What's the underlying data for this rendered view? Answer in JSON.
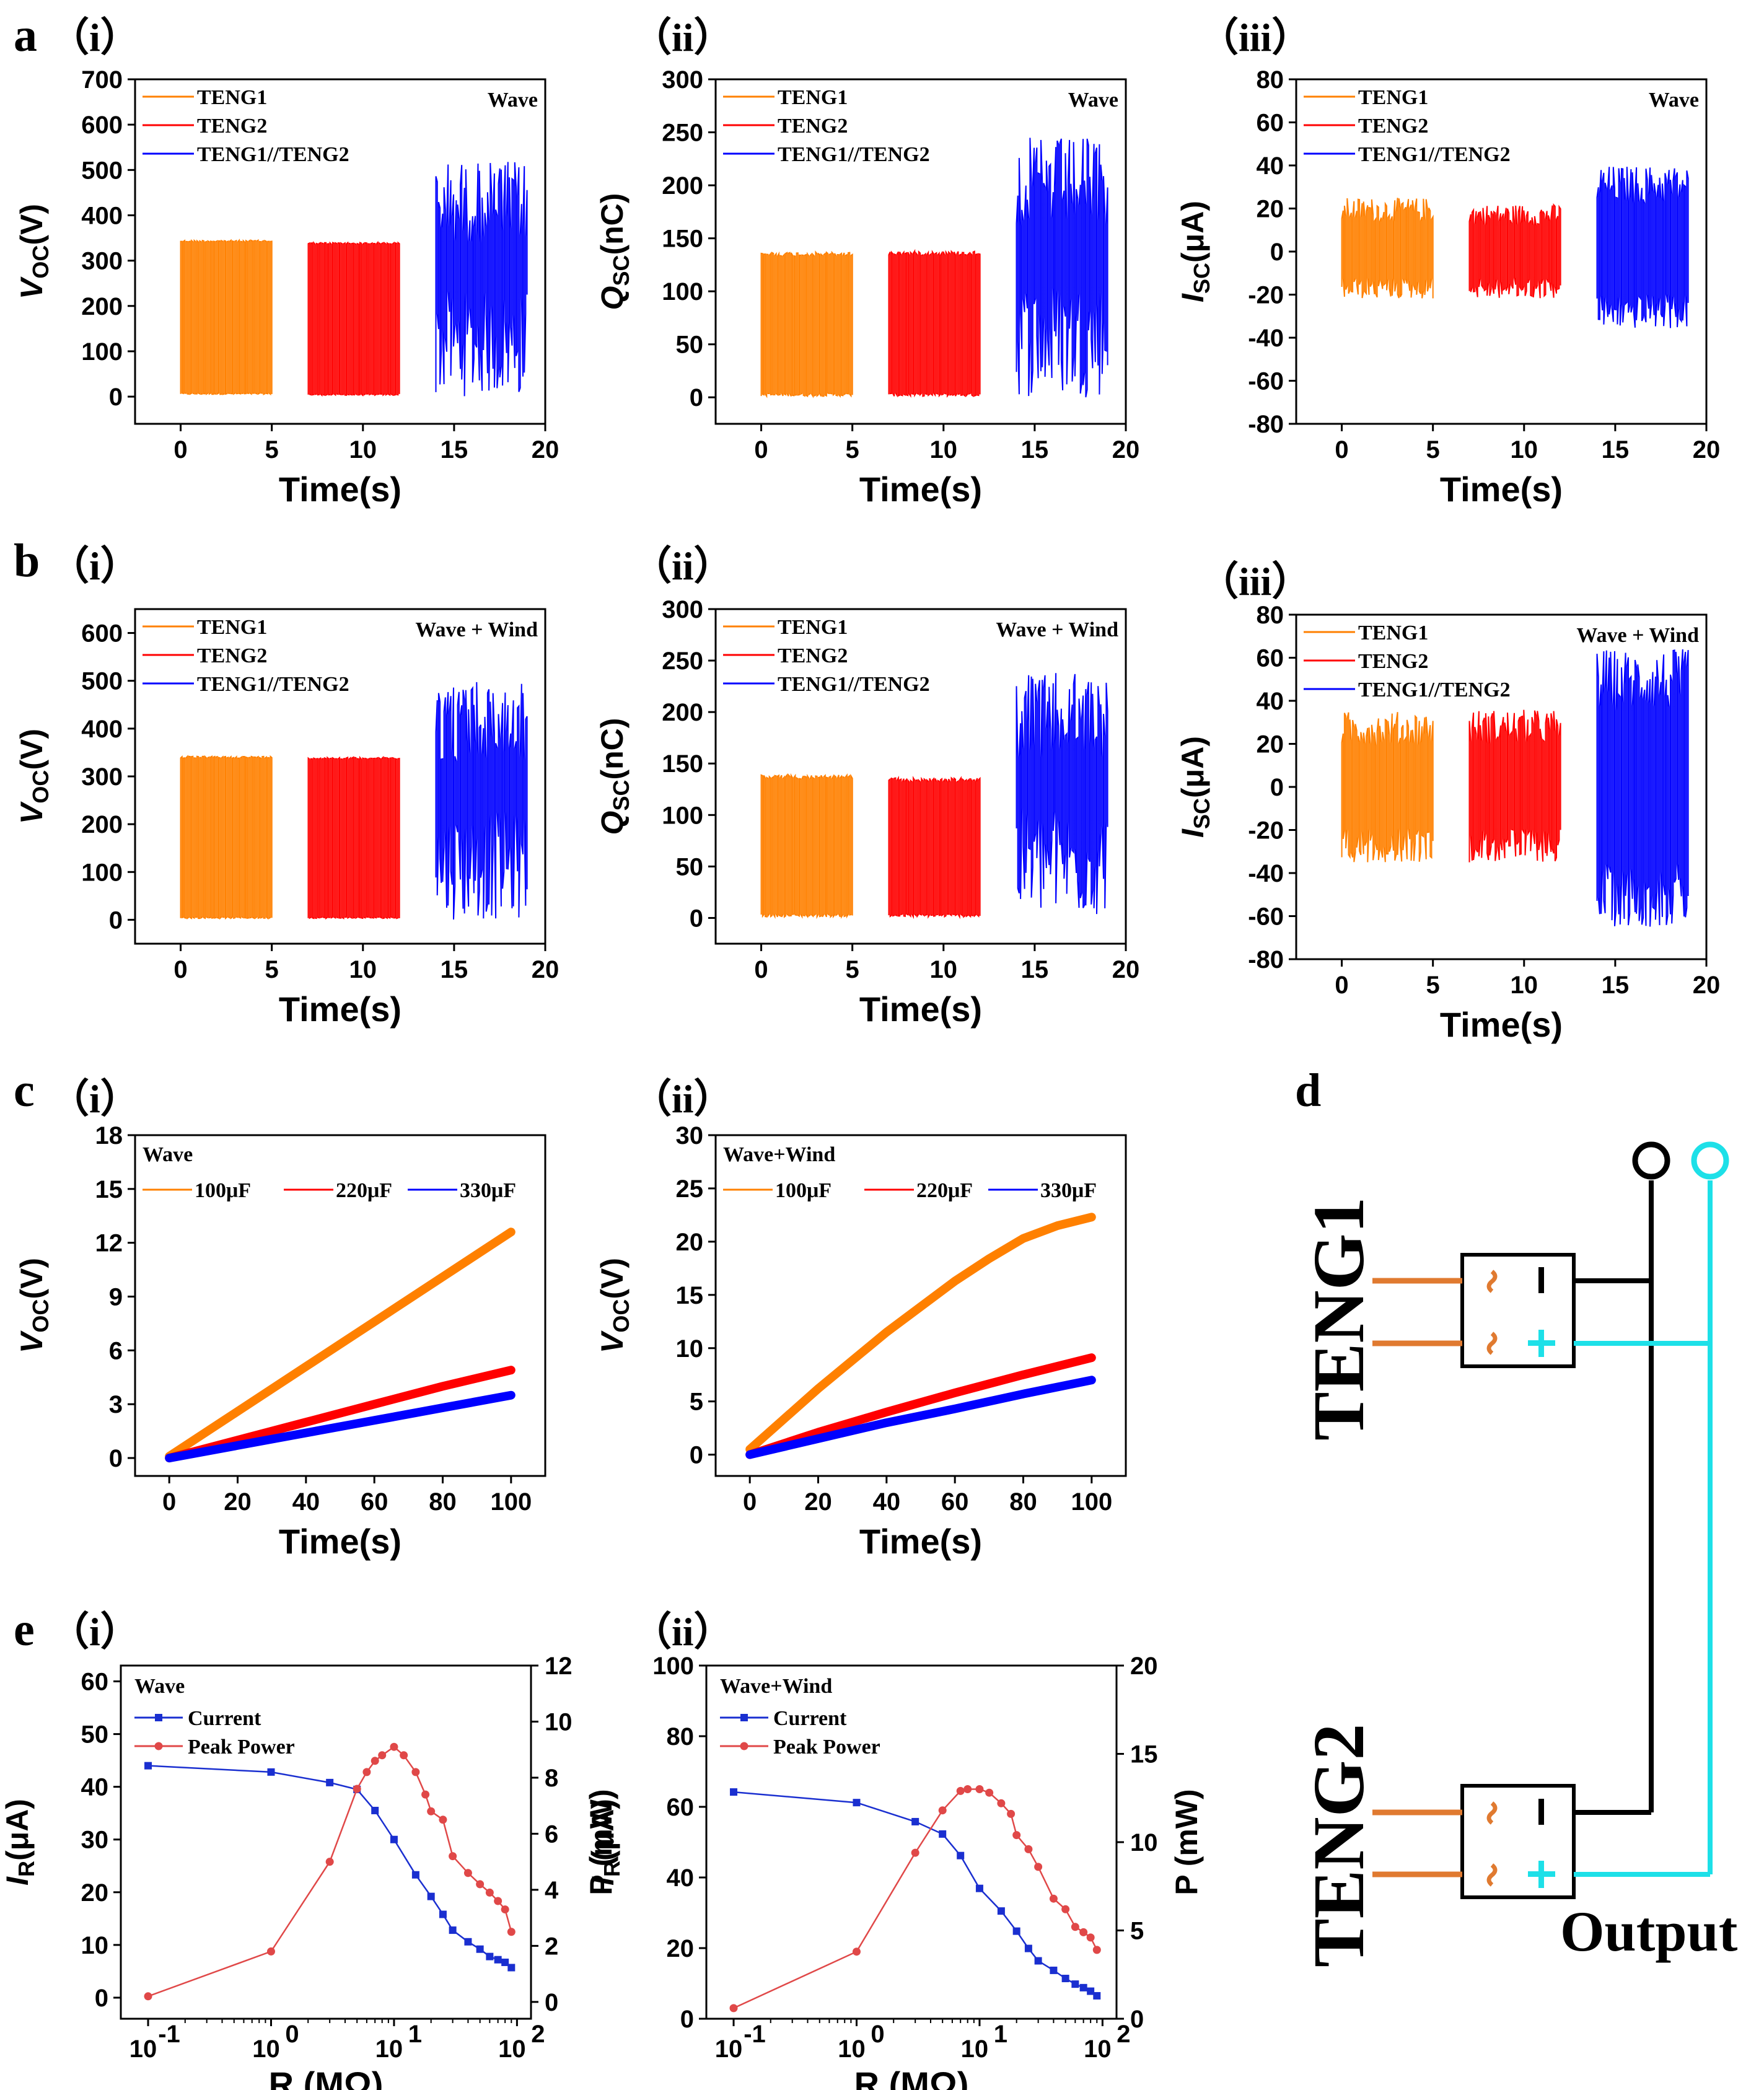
{
  "colors": {
    "orange": "#ff8000",
    "red": "#ff0000",
    "blue": "#0000ff",
    "power": "#e04848",
    "current": "#1a2fd0",
    "cyan": "#1de0e8",
    "teng_wire": "#e07a30",
    "black": "#000000"
  },
  "labels": {
    "a": "a",
    "b": "b",
    "c": "c",
    "d": "d",
    "e": "e",
    "i": "（i）",
    "ii": "（ii）",
    "iii": "（iii）"
  },
  "chart_data": [
    {
      "id": "a-i",
      "type": "line",
      "condition": "Wave",
      "xlabel": "Time(s)",
      "ylabel": "V_OC(V)",
      "ylabel_main": "V",
      "ylabel_sub": "OC",
      "ylabel_unit": "(V)",
      "xlim": [
        -2.5,
        20
      ],
      "ylim": [
        -60,
        700
      ],
      "xticks": [
        0,
        5,
        10,
        15,
        20
      ],
      "yticks": [
        0,
        100,
        200,
        300,
        400,
        500,
        600,
        700
      ],
      "series": [
        {
          "name": "TENG1",
          "color": "#ff8000",
          "t0": 0,
          "t1": 5,
          "low": 5,
          "high": 345,
          "kind": "steady"
        },
        {
          "name": "TENG2",
          "color": "#ff0000",
          "t0": 7,
          "t1": 12,
          "low": 3,
          "high": 340,
          "kind": "steady"
        },
        {
          "name": "TENG1//TENG2",
          "color": "#0000ff",
          "t0": 14,
          "t1": 19,
          "low": 0,
          "high": 520,
          "kind": "noisy"
        }
      ]
    },
    {
      "id": "a-ii",
      "type": "line",
      "condition": "Wave",
      "xlabel": "Time(s)",
      "ylabel": "Q_SC(nC)",
      "ylabel_main": "Q",
      "ylabel_sub": "SC",
      "ylabel_unit": "(nC)",
      "xlim": [
        -2.5,
        20
      ],
      "ylim": [
        -25,
        300
      ],
      "xticks": [
        0,
        5,
        10,
        15,
        20
      ],
      "yticks": [
        0,
        50,
        100,
        150,
        200,
        250,
        300
      ],
      "series": [
        {
          "name": "TENG1",
          "color": "#ff8000",
          "t0": 0,
          "t1": 5,
          "low": 1,
          "high": 137,
          "kind": "steady"
        },
        {
          "name": "TENG2",
          "color": "#ff0000",
          "t0": 7,
          "t1": 12,
          "low": 1,
          "high": 138,
          "kind": "steady"
        },
        {
          "name": "TENG1//TENG2",
          "color": "#0000ff",
          "t0": 14,
          "t1": 19,
          "low": 0,
          "high": 245,
          "kind": "noisy"
        }
      ]
    },
    {
      "id": "a-iii",
      "type": "line",
      "condition": "Wave",
      "xlabel": "Time(s)",
      "ylabel": "I_SC(μA)",
      "ylabel_main": "I",
      "ylabel_sub": "SC",
      "ylabel_unit": "(μA)",
      "xlim": [
        -2.5,
        20
      ],
      "ylim": [
        -80,
        80
      ],
      "xticks": [
        0,
        5,
        10,
        15,
        20
      ],
      "yticks": [
        -80,
        -60,
        -40,
        -20,
        0,
        20,
        40,
        60,
        80
      ],
      "series": [
        {
          "name": "TENG1",
          "color": "#ff8000",
          "t0": 0,
          "t1": 5,
          "low": -22,
          "high": 25,
          "kind": "ac"
        },
        {
          "name": "TENG2",
          "color": "#ff0000",
          "t0": 7,
          "t1": 12,
          "low": -22,
          "high": 22,
          "kind": "ac"
        },
        {
          "name": "TENG1//TENG2",
          "color": "#0000ff",
          "t0": 14,
          "t1": 19,
          "low": -36,
          "high": 40,
          "kind": "ac"
        }
      ]
    },
    {
      "id": "b-i",
      "type": "line",
      "condition": "Wave + Wind",
      "xlabel": "Time(s)",
      "ylabel": "V_OC(V)",
      "ylabel_main": "V",
      "ylabel_sub": "OC",
      "ylabel_unit": "(V)",
      "xlim": [
        -2.5,
        20
      ],
      "ylim": [
        -50,
        650
      ],
      "xticks": [
        0,
        5,
        10,
        15,
        20
      ],
      "yticks": [
        0,
        100,
        200,
        300,
        400,
        500,
        600
      ],
      "series": [
        {
          "name": "TENG1",
          "color": "#ff8000",
          "t0": 0,
          "t1": 5,
          "low": 3,
          "high": 342,
          "kind": "steady"
        },
        {
          "name": "TENG2",
          "color": "#ff0000",
          "t0": 7,
          "t1": 12,
          "low": 3,
          "high": 340,
          "kind": "steady"
        },
        {
          "name": "TENG1//TENG2",
          "color": "#0000ff",
          "t0": 14,
          "t1": 19,
          "low": 0,
          "high": 505,
          "kind": "noisy"
        }
      ]
    },
    {
      "id": "b-ii",
      "type": "line",
      "condition": "Wave + Wind",
      "xlabel": "Time(s)",
      "ylabel": "Q_SC(nC)",
      "ylabel_main": "Q",
      "ylabel_sub": "SC",
      "ylabel_unit": "(nC)",
      "xlim": [
        -2.5,
        20
      ],
      "ylim": [
        -25,
        300
      ],
      "xticks": [
        0,
        5,
        10,
        15,
        20
      ],
      "yticks": [
        0,
        50,
        100,
        150,
        200,
        250,
        300
      ],
      "series": [
        {
          "name": "TENG1",
          "color": "#ff8000",
          "t0": 0,
          "t1": 5,
          "low": 1,
          "high": 139,
          "kind": "steady"
        },
        {
          "name": "TENG2",
          "color": "#ff0000",
          "t0": 7,
          "t1": 12,
          "low": 1,
          "high": 136,
          "kind": "steady"
        },
        {
          "name": "TENG1//TENG2",
          "color": "#0000ff",
          "t0": 14,
          "t1": 19,
          "low": 0,
          "high": 238,
          "kind": "noisy"
        }
      ]
    },
    {
      "id": "b-iii",
      "type": "line",
      "condition": "Wave + Wind",
      "xlabel": "Time(s)",
      "ylabel": "I_SC(μA)",
      "ylabel_main": "I",
      "ylabel_sub": "SC",
      "ylabel_unit": "(μA)",
      "xlim": [
        -2.5,
        20
      ],
      "ylim": [
        -80,
        80
      ],
      "xticks": [
        0,
        5,
        10,
        15,
        20
      ],
      "yticks": [
        -80,
        -60,
        -40,
        -20,
        0,
        20,
        40,
        60,
        80
      ],
      "series": [
        {
          "name": "TENG1",
          "color": "#ff8000",
          "t0": 0,
          "t1": 5,
          "low": -35,
          "high": 35,
          "kind": "ac"
        },
        {
          "name": "TENG2",
          "color": "#ff0000",
          "t0": 7,
          "t1": 12,
          "low": -35,
          "high": 36,
          "kind": "ac"
        },
        {
          "name": "TENG1//TENG2",
          "color": "#0000ff",
          "t0": 14,
          "t1": 19,
          "low": -65,
          "high": 64,
          "kind": "ac"
        }
      ]
    },
    {
      "id": "c-i",
      "type": "line",
      "condition": "Wave",
      "xlabel": "Time(s)",
      "ylabel": "V_OC(V)",
      "ylabel_main": "V",
      "ylabel_sub": "OC",
      "ylabel_unit": "(V)",
      "xlim": [
        -10,
        110
      ],
      "ylim": [
        -1,
        18
      ],
      "xticks": [
        0,
        20,
        40,
        60,
        80,
        100
      ],
      "yticks": [
        0,
        3,
        6,
        9,
        12,
        15,
        18
      ],
      "series": [
        {
          "name": "100μF",
          "color": "#ff8000",
          "x": [
            0,
            20,
            40,
            60,
            80,
            100
          ],
          "y": [
            0.1,
            2.6,
            5.1,
            7.6,
            10.1,
            12.6
          ]
        },
        {
          "name": "220μF",
          "color": "#ff0000",
          "x": [
            0,
            20,
            40,
            60,
            80,
            100
          ],
          "y": [
            0,
            1.0,
            2.0,
            3.0,
            4.0,
            4.9
          ]
        },
        {
          "name": "330μF",
          "color": "#0000ff",
          "x": [
            0,
            20,
            40,
            60,
            80,
            100
          ],
          "y": [
            0,
            0.7,
            1.4,
            2.1,
            2.8,
            3.5
          ]
        }
      ]
    },
    {
      "id": "c-ii",
      "type": "line",
      "condition": "Wave+Wind",
      "xlabel": "Time(s)",
      "ylabel": "V_OC(V)",
      "ylabel_main": "V",
      "ylabel_sub": "OC",
      "ylabel_unit": "(V)",
      "xlim": [
        -10,
        110
      ],
      "ylim": [
        -2,
        30
      ],
      "xticks": [
        0,
        20,
        40,
        60,
        80,
        100
      ],
      "yticks": [
        0,
        5,
        10,
        15,
        20,
        25,
        30
      ],
      "series": [
        {
          "name": "100μF",
          "color": "#ff8000",
          "x": [
            0,
            20,
            40,
            60,
            70,
            80,
            90,
            100
          ],
          "y": [
            0.5,
            6.2,
            11.5,
            16.3,
            18.4,
            20.3,
            21.5,
            22.3
          ]
        },
        {
          "name": "220μF",
          "color": "#ff0000",
          "x": [
            0,
            20,
            40,
            60,
            80,
            100
          ],
          "y": [
            0,
            2.1,
            4.0,
            5.8,
            7.5,
            9.1
          ]
        },
        {
          "name": "330μF",
          "color": "#0000ff",
          "x": [
            0,
            20,
            40,
            60,
            80,
            100
          ],
          "y": [
            0,
            1.5,
            3.0,
            4.3,
            5.7,
            7.0
          ]
        }
      ]
    },
    {
      "id": "e-i",
      "type": "line",
      "condition": "Wave",
      "xlabel": "R (MΩ)",
      "xscale": "log",
      "xlim": [
        0.06,
        130
      ],
      "y1label": "I_R(μA)",
      "y1label_main": "I",
      "y1label_sub": "R",
      "y1label_unit": "(μA)",
      "y1lim": [
        -4,
        63
      ],
      "y1ticks": [
        0,
        10,
        20,
        30,
        40,
        50,
        60
      ],
      "y2label": "P (mW)",
      "y2lim": [
        -0.6,
        12
      ],
      "y2ticks": [
        0,
        2,
        4,
        6,
        8,
        10,
        12
      ],
      "xticks": [
        {
          "v": 0.1,
          "base": "10",
          "exp": "-1"
        },
        {
          "v": 1,
          "base": "10",
          "exp": "0"
        },
        {
          "v": 10,
          "base": "10",
          "exp": "1"
        },
        {
          "v": 100,
          "base": "10",
          "exp": "2"
        }
      ],
      "series": [
        {
          "name": "Current",
          "axis": "y1",
          "color": "#1a2fd0",
          "marker": "square",
          "x": [
            0.1,
            1,
            3,
            5,
            7,
            10,
            15,
            20,
            25,
            30,
            40,
            50,
            60,
            70,
            80,
            90
          ],
          "y": [
            44,
            42.8,
            40.8,
            39.5,
            35.5,
            30,
            23.3,
            19.2,
            15.8,
            12.8,
            10.6,
            9.2,
            7.8,
            7.2,
            6.7,
            5.7
          ]
        },
        {
          "name": "Peak Power",
          "axis": "y2",
          "color": "#e04848",
          "marker": "circle",
          "x": [
            0.1,
            1,
            3,
            5,
            6,
            7,
            8,
            10,
            12,
            15,
            18,
            20,
            25,
            30,
            40,
            50,
            60,
            70,
            80,
            90
          ],
          "y": [
            0.2,
            1.8,
            5,
            7.6,
            8.2,
            8.6,
            8.8,
            9.1,
            8.8,
            8.2,
            7.4,
            6.8,
            6.5,
            5.2,
            4.6,
            4.2,
            3.9,
            3.6,
            3.3,
            2.5
          ]
        }
      ]
    },
    {
      "id": "e-ii",
      "type": "line",
      "condition": "Wave+Wind",
      "xlabel": "R (MΩ)",
      "xscale": "log",
      "xlim": [
        0.06,
        130
      ],
      "y1label": "I_R(μA)",
      "y1label_main": "I",
      "y1label_sub": "R",
      "y1label_unit": "(μA)",
      "y1lim": [
        0,
        100
      ],
      "y1ticks": [
        0,
        20,
        40,
        60,
        80,
        100
      ],
      "y2label": "P (mW)",
      "y2lim": [
        0,
        20
      ],
      "y2ticks": [
        0,
        5,
        10,
        15,
        20
      ],
      "xticks": [
        {
          "v": 0.1,
          "base": "10",
          "exp": "-1"
        },
        {
          "v": 1,
          "base": "10",
          "exp": "0"
        },
        {
          "v": 10,
          "base": "10",
          "exp": "1"
        },
        {
          "v": 100,
          "base": "10",
          "exp": "2"
        }
      ],
      "series": [
        {
          "name": "Current",
          "axis": "y1",
          "color": "#1a2fd0",
          "marker": "square",
          "x": [
            0.1,
            1,
            3,
            5,
            7,
            10,
            15,
            20,
            25,
            30,
            40,
            50,
            60,
            70,
            80,
            90
          ],
          "y": [
            64.2,
            61.2,
            55.8,
            52.3,
            46.2,
            36.9,
            30.5,
            24.8,
            19.9,
            16.4,
            13.7,
            11.4,
            9.8,
            8.8,
            7.8,
            6.5
          ]
        },
        {
          "name": "Peak Power",
          "axis": "y2",
          "color": "#e04848",
          "marker": "circle",
          "x": [
            0.1,
            1,
            3,
            5,
            7,
            8,
            10,
            12,
            15,
            18,
            20,
            25,
            30,
            40,
            50,
            60,
            70,
            80,
            90
          ],
          "y": [
            0.6,
            3.8,
            9.4,
            11.8,
            12.9,
            13,
            13,
            12.8,
            12.2,
            11.6,
            10.4,
            9.6,
            8.6,
            6.8,
            6.2,
            5.2,
            4.9,
            4.6,
            3.9
          ]
        }
      ]
    }
  ],
  "diagram": {
    "teng1": "TENG1",
    "teng2": "TENG2",
    "output": "Output",
    "minus": "−",
    "plus": "+",
    "tilde": "~"
  }
}
